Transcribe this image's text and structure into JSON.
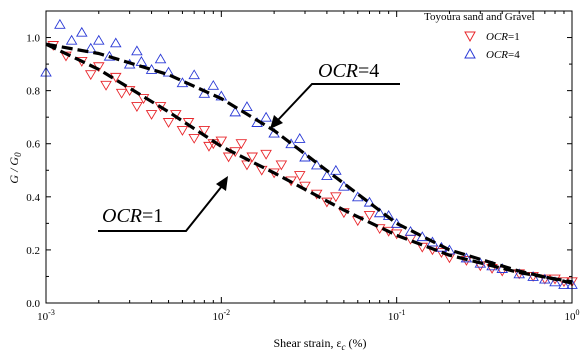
{
  "chart_data": {
    "type": "scatter",
    "xlabel": "Shear strain, ε",
    "xlabel_subscript": "c",
    "xlabel_unit": "(%)",
    "ylabel": "G / G",
    "ylabel_subscript": "0",
    "xscale": "log",
    "xlim": [
      0.001,
      1
    ],
    "ylim": [
      0.0,
      1.1
    ],
    "x_ticks": [
      {
        "base": "10",
        "exp": "-3"
      },
      {
        "base": "10",
        "exp": "-2"
      },
      {
        "base": "10",
        "exp": "-1"
      },
      {
        "base": "10",
        "exp": "0"
      }
    ],
    "y_ticks": [
      "0.0",
      "0.2",
      "0.4",
      "0.6",
      "0.8",
      "1.0"
    ],
    "y_tick_values": [
      0.0,
      0.2,
      0.4,
      0.6,
      0.8,
      1.0
    ],
    "grid": false,
    "legend": {
      "title": "Toyoura sand and Gravel",
      "placement": "top-right",
      "entries": [
        {
          "name": "OCR",
          "suffix": "=1",
          "marker": "triangle-down",
          "color": "#e8262b"
        },
        {
          "name": "OCR",
          "suffix": "=4",
          "marker": "triangle-up",
          "color": "#2a39d6"
        }
      ]
    },
    "annotations": [
      {
        "italic": "OCR",
        "text": "=4",
        "target_series": "OCR=4"
      },
      {
        "italic": "OCR",
        "text": "=1",
        "target_series": "OCR=1"
      }
    ],
    "series": [
      {
        "name": "OCR=1",
        "marker": "triangle-down",
        "color": "#e8262b",
        "trend": [
          [
            0.001,
            0.975
          ],
          [
            0.002,
            0.88
          ],
          [
            0.005,
            0.72
          ],
          [
            0.01,
            0.59
          ],
          [
            0.02,
            0.49
          ],
          [
            0.05,
            0.35
          ],
          [
            0.1,
            0.255
          ],
          [
            0.2,
            0.18
          ],
          [
            0.5,
            0.115
          ],
          [
            1,
            0.08
          ]
        ],
        "points": [
          [
            0.0011,
            0.97
          ],
          [
            0.0013,
            0.93
          ],
          [
            0.0016,
            0.91
          ],
          [
            0.0018,
            0.86
          ],
          [
            0.002,
            0.89
          ],
          [
            0.0022,
            0.82
          ],
          [
            0.0025,
            0.85
          ],
          [
            0.0027,
            0.79
          ],
          [
            0.003,
            0.8
          ],
          [
            0.0033,
            0.74
          ],
          [
            0.0036,
            0.77
          ],
          [
            0.004,
            0.71
          ],
          [
            0.0045,
            0.74
          ],
          [
            0.005,
            0.68
          ],
          [
            0.0055,
            0.71
          ],
          [
            0.006,
            0.65
          ],
          [
            0.0065,
            0.68
          ],
          [
            0.007,
            0.62
          ],
          [
            0.008,
            0.65
          ],
          [
            0.0085,
            0.59
          ],
          [
            0.009,
            0.6
          ],
          [
            0.01,
            0.61
          ],
          [
            0.011,
            0.55
          ],
          [
            0.012,
            0.57
          ],
          [
            0.013,
            0.6
          ],
          [
            0.014,
            0.52
          ],
          [
            0.015,
            0.55
          ],
          [
            0.017,
            0.5
          ],
          [
            0.018,
            0.56
          ],
          [
            0.02,
            0.49
          ],
          [
            0.022,
            0.52
          ],
          [
            0.025,
            0.46
          ],
          [
            0.028,
            0.48
          ],
          [
            0.03,
            0.44
          ],
          [
            0.035,
            0.41
          ],
          [
            0.04,
            0.38
          ],
          [
            0.045,
            0.4
          ],
          [
            0.05,
            0.34
          ],
          [
            0.06,
            0.31
          ],
          [
            0.07,
            0.33
          ],
          [
            0.08,
            0.28
          ],
          [
            0.09,
            0.27
          ],
          [
            0.1,
            0.26
          ],
          [
            0.12,
            0.24
          ],
          [
            0.14,
            0.21
          ],
          [
            0.16,
            0.2
          ],
          [
            0.18,
            0.19
          ],
          [
            0.2,
            0.17
          ],
          [
            0.25,
            0.16
          ],
          [
            0.3,
            0.14
          ],
          [
            0.35,
            0.13
          ],
          [
            0.4,
            0.12
          ],
          [
            0.5,
            0.11
          ],
          [
            0.6,
            0.1
          ],
          [
            0.7,
            0.09
          ],
          [
            0.8,
            0.09
          ],
          [
            0.9,
            0.08
          ],
          [
            1.0,
            0.08
          ]
        ]
      },
      {
        "name": "OCR=4",
        "marker": "triangle-up",
        "color": "#2a39d6",
        "trend": [
          [
            0.001,
            0.975
          ],
          [
            0.002,
            0.94
          ],
          [
            0.005,
            0.86
          ],
          [
            0.01,
            0.77
          ],
          [
            0.02,
            0.65
          ],
          [
            0.05,
            0.45
          ],
          [
            0.1,
            0.3
          ],
          [
            0.2,
            0.2
          ],
          [
            0.5,
            0.12
          ],
          [
            1,
            0.075
          ]
        ],
        "points": [
          [
            0.001,
            0.87
          ],
          [
            0.0012,
            1.05
          ],
          [
            0.0014,
            0.99
          ],
          [
            0.0016,
            1.02
          ],
          [
            0.0018,
            0.96
          ],
          [
            0.002,
            0.99
          ],
          [
            0.0023,
            0.93
          ],
          [
            0.0025,
            0.98
          ],
          [
            0.003,
            0.9
          ],
          [
            0.0033,
            0.95
          ],
          [
            0.0035,
            0.91
          ],
          [
            0.004,
            0.88
          ],
          [
            0.0045,
            0.92
          ],
          [
            0.005,
            0.87
          ],
          [
            0.006,
            0.83
          ],
          [
            0.007,
            0.86
          ],
          [
            0.008,
            0.79
          ],
          [
            0.009,
            0.82
          ],
          [
            0.01,
            0.78
          ],
          [
            0.012,
            0.72
          ],
          [
            0.014,
            0.74
          ],
          [
            0.016,
            0.68
          ],
          [
            0.018,
            0.7
          ],
          [
            0.02,
            0.64
          ],
          [
            0.025,
            0.6
          ],
          [
            0.028,
            0.62
          ],
          [
            0.03,
            0.55
          ],
          [
            0.035,
            0.52
          ],
          [
            0.04,
            0.48
          ],
          [
            0.045,
            0.5
          ],
          [
            0.05,
            0.44
          ],
          [
            0.06,
            0.4
          ],
          [
            0.07,
            0.38
          ],
          [
            0.08,
            0.34
          ],
          [
            0.09,
            0.33
          ],
          [
            0.1,
            0.3
          ],
          [
            0.12,
            0.27
          ],
          [
            0.14,
            0.25
          ],
          [
            0.16,
            0.23
          ],
          [
            0.18,
            0.21
          ],
          [
            0.2,
            0.2
          ],
          [
            0.25,
            0.17
          ],
          [
            0.3,
            0.15
          ],
          [
            0.35,
            0.14
          ],
          [
            0.4,
            0.13
          ],
          [
            0.5,
            0.11
          ],
          [
            0.6,
            0.1
          ],
          [
            0.7,
            0.09
          ],
          [
            0.8,
            0.08
          ],
          [
            0.9,
            0.07
          ],
          [
            1.0,
            0.07
          ]
        ]
      }
    ]
  }
}
